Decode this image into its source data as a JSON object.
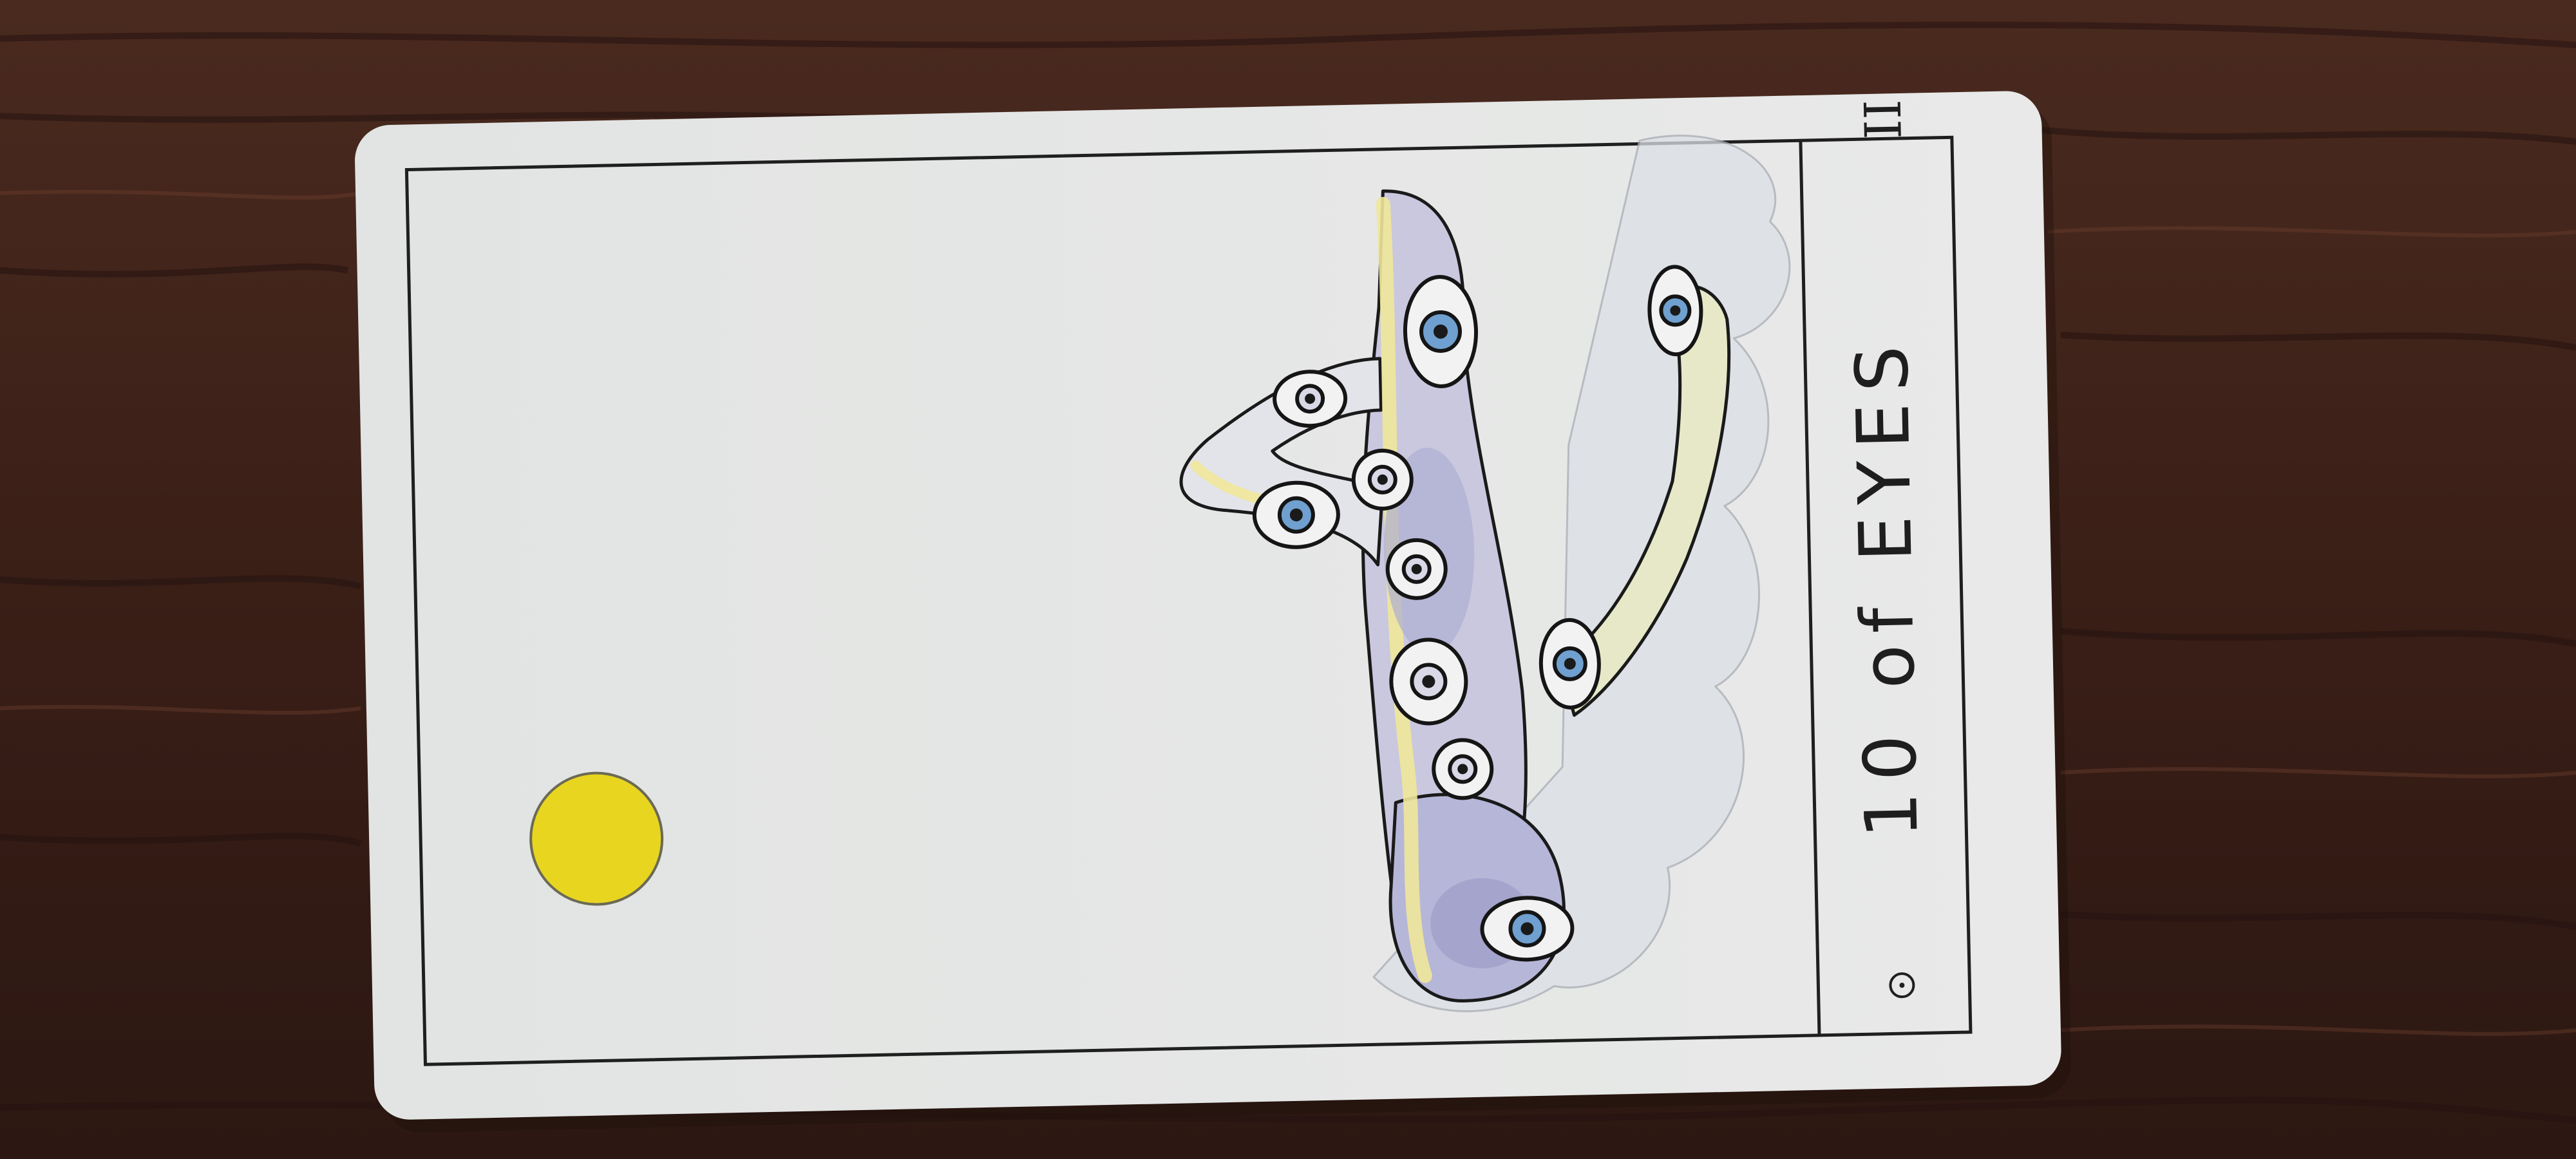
{
  "card": {
    "title": "10 of EYES",
    "corner_numeral": "II",
    "suit_dot_color": "#e8d520"
  },
  "colors": {
    "table_wood": "#3a1f17",
    "card_face": "#e4e6e5",
    "ink": "#1f1f1f",
    "wash_lavender": "#b9b8d8",
    "wash_yellow": "#efe79a",
    "iris_blue": "#6fa0cf"
  },
  "icons": {
    "corner_symbol": "dot-in-circle-icon",
    "suit_marker": "yellow-sun-dot-icon"
  }
}
